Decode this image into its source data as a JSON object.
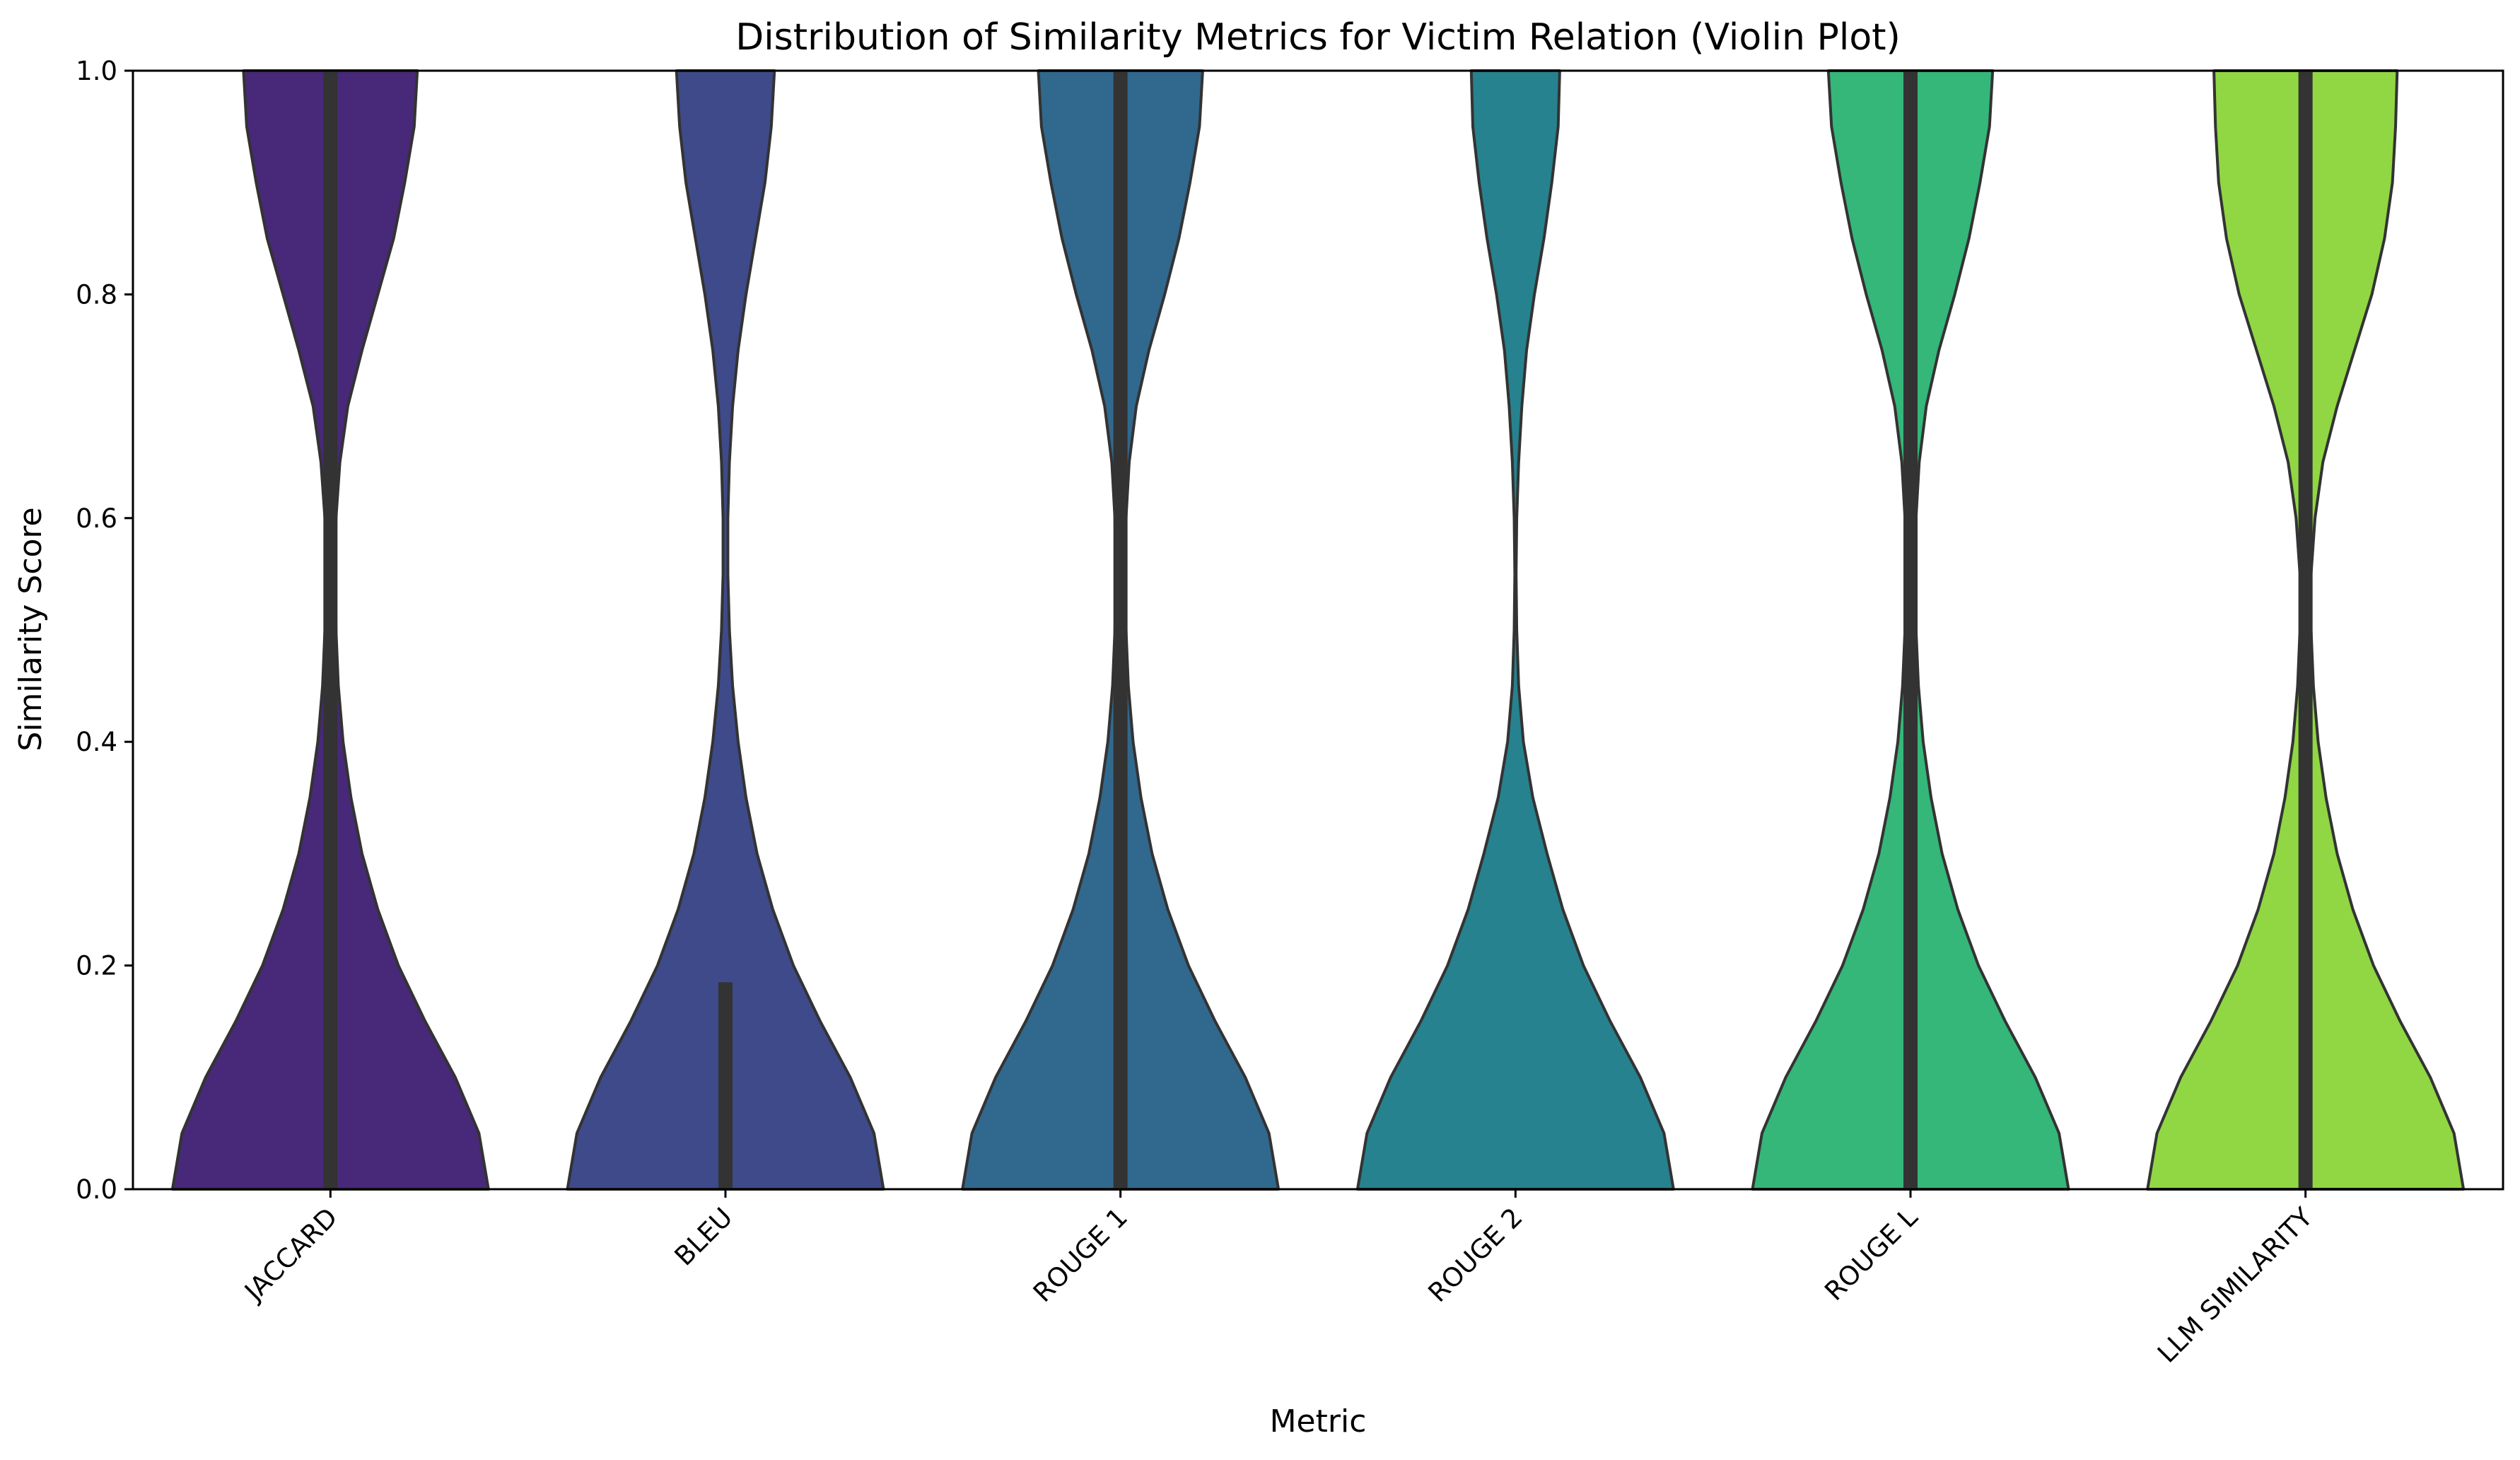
{
  "chart_data": {
    "type": "violin",
    "title": "Distribution of Similarity Metrics for Victim Relation (Violin Plot)",
    "xlabel": "Metric",
    "ylabel": "Similarity Score",
    "ylim": [
      0.0,
      1.0
    ],
    "yticks": [
      "0.0",
      "0.2",
      "0.4",
      "0.6",
      "0.8",
      "1.0"
    ],
    "grid": false,
    "legend": "none",
    "categories": [
      "JACCARD",
      "BLEU",
      "ROUGE 1",
      "ROUGE 2",
      "ROUGE L",
      "LLM SIMILARITY"
    ],
    "colors": [
      "#482878",
      "#3e4a89",
      "#31688e",
      "#26828e",
      "#35b779",
      "#90d743"
    ],
    "series": [
      {
        "category": "JACCARD",
        "density_profile": [
          {
            "y": 0.0,
            "w": 1.0
          },
          {
            "y": 0.05,
            "w": 0.94
          },
          {
            "y": 0.1,
            "w": 0.79
          },
          {
            "y": 0.15,
            "w": 0.6
          },
          {
            "y": 0.2,
            "w": 0.43
          },
          {
            "y": 0.25,
            "w": 0.3
          },
          {
            "y": 0.3,
            "w": 0.2
          },
          {
            "y": 0.35,
            "w": 0.13
          },
          {
            "y": 0.4,
            "w": 0.08
          },
          {
            "y": 0.45,
            "w": 0.05
          },
          {
            "y": 0.5,
            "w": 0.035
          },
          {
            "y": 0.55,
            "w": 0.03
          },
          {
            "y": 0.6,
            "w": 0.035
          },
          {
            "y": 0.65,
            "w": 0.06
          },
          {
            "y": 0.7,
            "w": 0.11
          },
          {
            "y": 0.75,
            "w": 0.2
          },
          {
            "y": 0.8,
            "w": 0.3
          },
          {
            "y": 0.85,
            "w": 0.4
          },
          {
            "y": 0.9,
            "w": 0.47
          },
          {
            "y": 0.95,
            "w": 0.53
          },
          {
            "y": 1.0,
            "w": 0.55
          }
        ],
        "iqr": [
          0.0,
          1.0
        ]
      },
      {
        "category": "BLEU",
        "density_profile": [
          {
            "y": 0.0,
            "w": 1.0
          },
          {
            "y": 0.05,
            "w": 0.94
          },
          {
            "y": 0.1,
            "w": 0.79
          },
          {
            "y": 0.15,
            "w": 0.6
          },
          {
            "y": 0.2,
            "w": 0.43
          },
          {
            "y": 0.25,
            "w": 0.3
          },
          {
            "y": 0.3,
            "w": 0.2
          },
          {
            "y": 0.35,
            "w": 0.13
          },
          {
            "y": 0.4,
            "w": 0.08
          },
          {
            "y": 0.45,
            "w": 0.045
          },
          {
            "y": 0.5,
            "w": 0.025
          },
          {
            "y": 0.55,
            "w": 0.015
          },
          {
            "y": 0.6,
            "w": 0.015
          },
          {
            "y": 0.65,
            "w": 0.025
          },
          {
            "y": 0.7,
            "w": 0.045
          },
          {
            "y": 0.75,
            "w": 0.08
          },
          {
            "y": 0.8,
            "w": 0.13
          },
          {
            "y": 0.85,
            "w": 0.19
          },
          {
            "y": 0.9,
            "w": 0.25
          },
          {
            "y": 0.95,
            "w": 0.29
          },
          {
            "y": 1.0,
            "w": 0.31
          }
        ],
        "iqr": [
          0.0,
          0.185
        ]
      },
      {
        "category": "ROUGE 1",
        "density_profile": [
          {
            "y": 0.0,
            "w": 1.0
          },
          {
            "y": 0.05,
            "w": 0.94
          },
          {
            "y": 0.1,
            "w": 0.79
          },
          {
            "y": 0.15,
            "w": 0.6
          },
          {
            "y": 0.2,
            "w": 0.43
          },
          {
            "y": 0.25,
            "w": 0.3
          },
          {
            "y": 0.3,
            "w": 0.2
          },
          {
            "y": 0.35,
            "w": 0.13
          },
          {
            "y": 0.4,
            "w": 0.08
          },
          {
            "y": 0.45,
            "w": 0.05
          },
          {
            "y": 0.5,
            "w": 0.035
          },
          {
            "y": 0.55,
            "w": 0.03
          },
          {
            "y": 0.6,
            "w": 0.035
          },
          {
            "y": 0.65,
            "w": 0.055
          },
          {
            "y": 0.7,
            "w": 0.1
          },
          {
            "y": 0.75,
            "w": 0.18
          },
          {
            "y": 0.8,
            "w": 0.28
          },
          {
            "y": 0.85,
            "w": 0.37
          },
          {
            "y": 0.9,
            "w": 0.44
          },
          {
            "y": 0.95,
            "w": 0.5
          },
          {
            "y": 1.0,
            "w": 0.52
          }
        ],
        "iqr": [
          0.0,
          1.0
        ]
      },
      {
        "category": "ROUGE 2",
        "density_profile": [
          {
            "y": 0.0,
            "w": 1.0
          },
          {
            "y": 0.05,
            "w": 0.94
          },
          {
            "y": 0.1,
            "w": 0.79
          },
          {
            "y": 0.15,
            "w": 0.6
          },
          {
            "y": 0.2,
            "w": 0.43
          },
          {
            "y": 0.25,
            "w": 0.3
          },
          {
            "y": 0.3,
            "w": 0.2
          },
          {
            "y": 0.35,
            "w": 0.11
          },
          {
            "y": 0.4,
            "w": 0.05
          },
          {
            "y": 0.45,
            "w": 0.02
          },
          {
            "y": 0.5,
            "w": 0.008
          },
          {
            "y": 0.55,
            "w": 0.004
          },
          {
            "y": 0.6,
            "w": 0.008
          },
          {
            "y": 0.65,
            "w": 0.02
          },
          {
            "y": 0.7,
            "w": 0.04
          },
          {
            "y": 0.75,
            "w": 0.07
          },
          {
            "y": 0.8,
            "w": 0.12
          },
          {
            "y": 0.85,
            "w": 0.18
          },
          {
            "y": 0.9,
            "w": 0.23
          },
          {
            "y": 0.95,
            "w": 0.27
          },
          {
            "y": 1.0,
            "w": 0.28
          }
        ],
        "iqr": null
      },
      {
        "category": "ROUGE L",
        "density_profile": [
          {
            "y": 0.0,
            "w": 1.0
          },
          {
            "y": 0.05,
            "w": 0.94
          },
          {
            "y": 0.1,
            "w": 0.79
          },
          {
            "y": 0.15,
            "w": 0.6
          },
          {
            "y": 0.2,
            "w": 0.43
          },
          {
            "y": 0.25,
            "w": 0.3
          },
          {
            "y": 0.3,
            "w": 0.2
          },
          {
            "y": 0.35,
            "w": 0.13
          },
          {
            "y": 0.4,
            "w": 0.08
          },
          {
            "y": 0.45,
            "w": 0.05
          },
          {
            "y": 0.5,
            "w": 0.035
          },
          {
            "y": 0.55,
            "w": 0.03
          },
          {
            "y": 0.6,
            "w": 0.035
          },
          {
            "y": 0.65,
            "w": 0.055
          },
          {
            "y": 0.7,
            "w": 0.1
          },
          {
            "y": 0.75,
            "w": 0.18
          },
          {
            "y": 0.8,
            "w": 0.28
          },
          {
            "y": 0.85,
            "w": 0.37
          },
          {
            "y": 0.9,
            "w": 0.44
          },
          {
            "y": 0.95,
            "w": 0.5
          },
          {
            "y": 1.0,
            "w": 0.52
          }
        ],
        "iqr": [
          0.0,
          1.0
        ]
      },
      {
        "category": "LLM SIMILARITY",
        "density_profile": [
          {
            "y": 0.0,
            "w": 1.0
          },
          {
            "y": 0.05,
            "w": 0.94
          },
          {
            "y": 0.1,
            "w": 0.79
          },
          {
            "y": 0.15,
            "w": 0.6
          },
          {
            "y": 0.2,
            "w": 0.43
          },
          {
            "y": 0.25,
            "w": 0.3
          },
          {
            "y": 0.3,
            "w": 0.2
          },
          {
            "y": 0.35,
            "w": 0.13
          },
          {
            "y": 0.4,
            "w": 0.08
          },
          {
            "y": 0.45,
            "w": 0.05
          },
          {
            "y": 0.5,
            "w": 0.035
          },
          {
            "y": 0.55,
            "w": 0.035
          },
          {
            "y": 0.6,
            "w": 0.06
          },
          {
            "y": 0.65,
            "w": 0.11
          },
          {
            "y": 0.7,
            "w": 0.2
          },
          {
            "y": 0.75,
            "w": 0.31
          },
          {
            "y": 0.8,
            "w": 0.42
          },
          {
            "y": 0.85,
            "w": 0.5
          },
          {
            "y": 0.9,
            "w": 0.55
          },
          {
            "y": 0.95,
            "w": 0.57
          },
          {
            "y": 1.0,
            "w": 0.58
          }
        ],
        "iqr": [
          0.0,
          1.0
        ]
      }
    ]
  }
}
